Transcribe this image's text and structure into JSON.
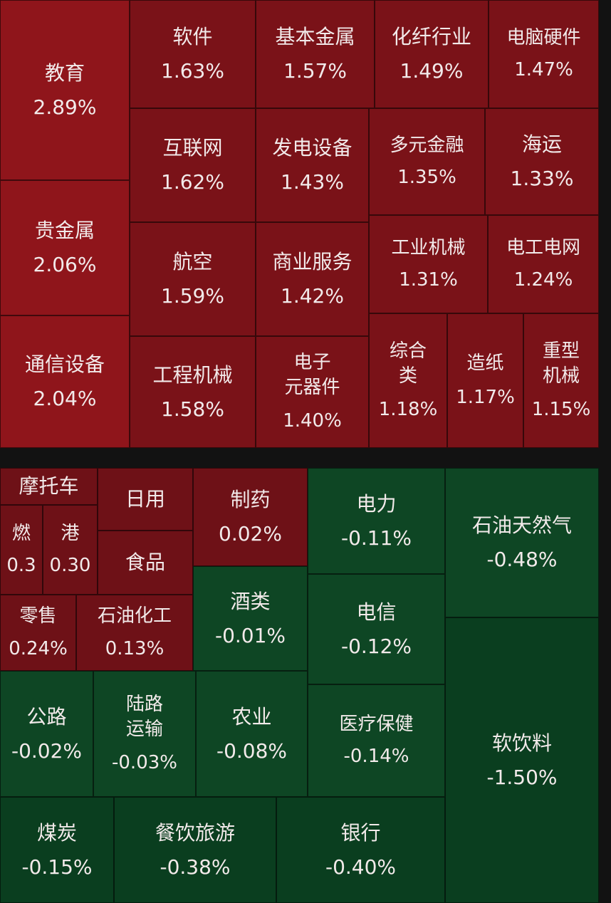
{
  "chart_data": {
    "type": "treemap",
    "colors": {
      "up_strong": "#8f151b",
      "up_mid": "#7a1218",
      "up_weak": "#6e1117",
      "down_weak": "#0e4624",
      "down_strong": "#0a3e1f",
      "background": "#121212"
    },
    "tiles": [
      {
        "name": "教育",
        "change": "2.89%"
      },
      {
        "name": "贵金属",
        "change": "2.06%"
      },
      {
        "name": "通信设备",
        "change": "2.04%"
      },
      {
        "name": "软件",
        "change": "1.63%"
      },
      {
        "name": "基本金属",
        "change": "1.57%"
      },
      {
        "name": "化纤行业",
        "change": "1.49%"
      },
      {
        "name": "电脑硬件",
        "change": "1.47%"
      },
      {
        "name": "互联网",
        "change": "1.62%"
      },
      {
        "name": "发电设备",
        "change": "1.43%"
      },
      {
        "name": "多元金融",
        "change": "1.35%"
      },
      {
        "name": "海运",
        "change": "1.33%"
      },
      {
        "name": "航空",
        "change": "1.59%"
      },
      {
        "name": "商业服务",
        "change": "1.42%"
      },
      {
        "name": "工业机械",
        "change": "1.31%"
      },
      {
        "name": "电工电网",
        "change": "1.24%"
      },
      {
        "name": "工程机械",
        "change": "1.58%"
      },
      {
        "name": "电子\n元器件",
        "change": "1.40%"
      },
      {
        "name": "综合\n类",
        "change": "1.18%"
      },
      {
        "name": "造纸",
        "change": "1.17%"
      },
      {
        "name": "重型\n机械",
        "change": "1.15%"
      },
      {
        "name": "摩托车",
        "change": ""
      },
      {
        "name": "燃",
        "change": "0.3"
      },
      {
        "name": "港",
        "change": "0.30"
      },
      {
        "name": "日用",
        "change": ""
      },
      {
        "name": "食品",
        "change": ""
      },
      {
        "name": "制药",
        "change": "0.02%"
      },
      {
        "name": "零售",
        "change": "0.24%"
      },
      {
        "name": "石油化工",
        "change": "0.13%"
      },
      {
        "name": "酒类",
        "change": "-0.01%"
      },
      {
        "name": "电力",
        "change": "-0.11%"
      },
      {
        "name": "电信",
        "change": "-0.12%"
      },
      {
        "name": "石油天然气",
        "change": "-0.48%"
      },
      {
        "name": "公路",
        "change": "-0.02%"
      },
      {
        "name": "陆路\n运输",
        "change": "-0.03%"
      },
      {
        "name": "农业",
        "change": "-0.08%"
      },
      {
        "name": "医疗保健",
        "change": "-0.14%"
      },
      {
        "name": "软饮料",
        "change": "-1.50%"
      },
      {
        "name": "煤炭",
        "change": "-0.15%"
      },
      {
        "name": "餐饮旅游",
        "change": "-0.38%"
      },
      {
        "name": "银行",
        "change": "-0.40%"
      }
    ]
  }
}
